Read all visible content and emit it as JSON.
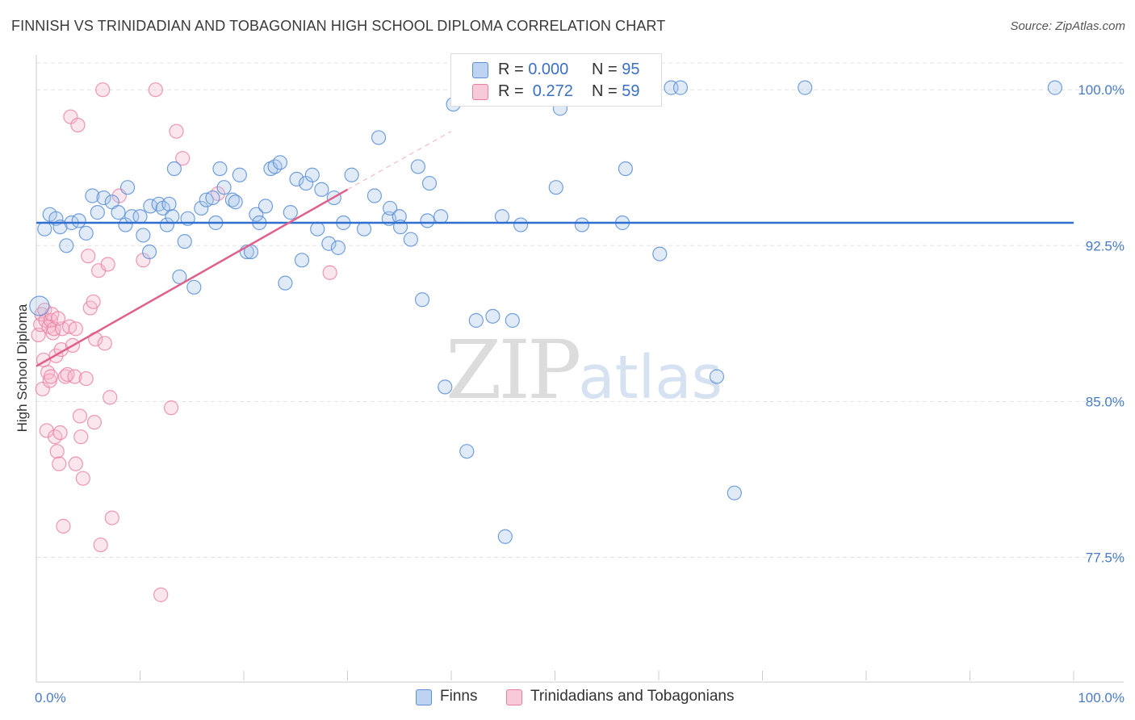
{
  "title": "FINNISH VS TRINIDADIAN AND TOBAGONIAN HIGH SCHOOL DIPLOMA CORRELATION CHART",
  "source": "Source: ZipAtlas.com",
  "watermark": {
    "zip": "ZIP",
    "atlas": "atlas"
  },
  "legend": {
    "finns": {
      "r_label": "R = ",
      "r_value": "0.000",
      "n_label": "N = ",
      "n_value": "95"
    },
    "trini": {
      "r_label": "R = ",
      "r_value": " 0.272",
      "n_label": "N = ",
      "n_value": "59"
    }
  },
  "bottom_legend": {
    "finns": "Finns",
    "trini": "Trinidadians and Tobagonians"
  },
  "colors": {
    "finns_fill": "#a9c6ec",
    "finns_stroke": "#5b8fd6",
    "finns_line": "#2f6fd0",
    "trini_fill": "#f5b8cc",
    "trini_stroke": "#e87ea2",
    "trini_line": "#e0608c",
    "grid": "#e3e3e3",
    "axis": "#cccccc",
    "tick_text": "#4a7bc8"
  },
  "chart_data": {
    "type": "scatter",
    "title": "FINNISH VS TRINIDADIAN AND TOBAGONIAN HIGH SCHOOL DIPLOMA CORRELATION CHART",
    "xlabel": "",
    "ylabel": "High School Diploma",
    "xlim": [
      0,
      100
    ],
    "ylim": [
      71.5,
      101.6
    ],
    "x_tick_labels": [
      {
        "value": 0,
        "label": "0.0%"
      },
      {
        "value": 100,
        "label": "100.0%"
      }
    ],
    "y_ticks": [
      {
        "value": 100.0,
        "label": "100.0%"
      },
      {
        "value": 92.5,
        "label": "92.5%"
      },
      {
        "value": 85.0,
        "label": "85.0%"
      },
      {
        "value": 77.5,
        "label": "77.5%"
      }
    ],
    "grid": true,
    "series": [
      {
        "name": "Finns",
        "R": 0.0,
        "N": 95,
        "trend": {
          "x0": 0,
          "y0": 93.6,
          "x1": 100,
          "y1": 93.6
        },
        "points": [
          [
            0.3,
            89.6
          ],
          [
            0.8,
            93.3
          ],
          [
            1.3,
            94.0
          ],
          [
            1.9,
            93.8
          ],
          [
            2.3,
            93.4
          ],
          [
            2.9,
            92.5
          ],
          [
            3.4,
            93.6
          ],
          [
            4.1,
            93.7
          ],
          [
            4.8,
            93.1
          ],
          [
            5.4,
            94.9
          ],
          [
            5.9,
            94.1
          ],
          [
            6.5,
            94.8
          ],
          [
            7.3,
            94.6
          ],
          [
            7.9,
            94.1
          ],
          [
            8.6,
            93.5
          ],
          [
            9.2,
            93.9
          ],
          [
            8.8,
            95.3
          ],
          [
            10.0,
            93.9
          ],
          [
            10.3,
            93.0
          ],
          [
            10.9,
            92.2
          ],
          [
            11.0,
            94.4
          ],
          [
            11.8,
            94.5
          ],
          [
            12.2,
            94.3
          ],
          [
            12.8,
            94.5
          ],
          [
            12.6,
            93.5
          ],
          [
            13.1,
            93.9
          ],
          [
            13.3,
            96.2
          ],
          [
            13.8,
            91.0
          ],
          [
            14.3,
            92.7
          ],
          [
            14.6,
            93.8
          ],
          [
            15.2,
            90.5
          ],
          [
            15.9,
            94.3
          ],
          [
            16.4,
            94.7
          ],
          [
            17.0,
            94.8
          ],
          [
            17.3,
            93.6
          ],
          [
            17.7,
            96.2
          ],
          [
            18.1,
            95.3
          ],
          [
            18.9,
            94.7
          ],
          [
            19.2,
            94.6
          ],
          [
            19.6,
            95.9
          ],
          [
            20.3,
            92.2
          ],
          [
            20.7,
            92.2
          ],
          [
            21.2,
            94.0
          ],
          [
            21.5,
            93.6
          ],
          [
            22.1,
            94.4
          ],
          [
            22.6,
            96.2
          ],
          [
            23.0,
            96.3
          ],
          [
            23.5,
            96.5
          ],
          [
            24.0,
            90.7
          ],
          [
            24.5,
            94.1
          ],
          [
            25.1,
            95.7
          ],
          [
            25.6,
            91.8
          ],
          [
            26.0,
            95.5
          ],
          [
            26.6,
            95.9
          ],
          [
            27.1,
            93.3
          ],
          [
            27.5,
            95.2
          ],
          [
            28.2,
            92.6
          ],
          [
            28.7,
            94.8
          ],
          [
            29.1,
            92.4
          ],
          [
            29.6,
            93.6
          ],
          [
            30.4,
            95.9
          ],
          [
            31.6,
            93.3
          ],
          [
            32.6,
            94.9
          ],
          [
            33.0,
            97.7
          ],
          [
            34.0,
            93.8
          ],
          [
            34.1,
            94.3
          ],
          [
            35.0,
            93.9
          ],
          [
            35.1,
            93.4
          ],
          [
            36.1,
            92.8
          ],
          [
            36.8,
            96.3
          ],
          [
            37.2,
            89.9
          ],
          [
            37.7,
            93.7
          ],
          [
            37.9,
            95.5
          ],
          [
            39.0,
            93.9
          ],
          [
            39.4,
            85.7
          ],
          [
            41.5,
            82.6
          ],
          [
            42.4,
            88.9
          ],
          [
            44.0,
            89.1
          ],
          [
            44.9,
            93.9
          ],
          [
            45.2,
            78.5
          ],
          [
            45.9,
            88.9
          ],
          [
            46.7,
            93.5
          ],
          [
            50.1,
            95.3
          ],
          [
            52.6,
            93.5
          ],
          [
            56.5,
            93.6
          ],
          [
            56.8,
            96.2
          ],
          [
            60.1,
            92.1
          ],
          [
            61.2,
            100.1
          ],
          [
            62.1,
            100.1
          ],
          [
            65.6,
            86.2
          ],
          [
            67.3,
            80.6
          ],
          [
            74.1,
            100.1
          ],
          [
            98.2,
            100.1
          ],
          [
            40.2,
            99.3
          ],
          [
            50.5,
            99.1
          ]
        ]
      },
      {
        "name": "Trinidadians and Tobagonians",
        "R": 0.272,
        "N": 59,
        "trend": {
          "x0": 0,
          "y0": 86.7,
          "x1": 30,
          "y1": 95.2
        },
        "trend_ext": {
          "x0": 30,
          "y0": 95.2,
          "x1": 40,
          "y1": 98.0
        },
        "points": [
          [
            0.2,
            88.2
          ],
          [
            0.4,
            88.7
          ],
          [
            0.5,
            89.2
          ],
          [
            0.6,
            85.6
          ],
          [
            0.8,
            89.4
          ],
          [
            0.9,
            88.9
          ],
          [
            1.0,
            83.6
          ],
          [
            1.1,
            86.4
          ],
          [
            1.2,
            88.6
          ],
          [
            1.3,
            86.0
          ],
          [
            1.4,
            88.9
          ],
          [
            1.5,
            89.2
          ],
          [
            1.6,
            88.3
          ],
          [
            1.7,
            88.5
          ],
          [
            1.8,
            83.3
          ],
          [
            1.9,
            87.2
          ],
          [
            2.0,
            82.6
          ],
          [
            2.2,
            82.0
          ],
          [
            2.3,
            83.5
          ],
          [
            2.4,
            87.5
          ],
          [
            2.5,
            88.5
          ],
          [
            2.6,
            79.0
          ],
          [
            2.8,
            86.2
          ],
          [
            3.0,
            86.3
          ],
          [
            3.2,
            88.6
          ],
          [
            3.3,
            98.7
          ],
          [
            3.5,
            87.7
          ],
          [
            3.7,
            86.2
          ],
          [
            3.8,
            82.0
          ],
          [
            4.0,
            98.3
          ],
          [
            4.2,
            84.3
          ],
          [
            4.3,
            83.3
          ],
          [
            4.5,
            81.3
          ],
          [
            4.8,
            86.1
          ],
          [
            5.0,
            92.0
          ],
          [
            5.2,
            89.5
          ],
          [
            5.5,
            89.8
          ],
          [
            5.7,
            88.0
          ],
          [
            6.0,
            91.3
          ],
          [
            6.2,
            78.1
          ],
          [
            6.4,
            100.0
          ],
          [
            6.6,
            87.8
          ],
          [
            6.9,
            91.6
          ],
          [
            7.1,
            85.2
          ],
          [
            7.3,
            79.4
          ],
          [
            8.0,
            94.9
          ],
          [
            10.3,
            91.8
          ],
          [
            11.5,
            100.0
          ],
          [
            12.0,
            75.7
          ],
          [
            13.0,
            84.7
          ],
          [
            13.5,
            98.0
          ],
          [
            14.1,
            96.7
          ],
          [
            17.5,
            95.0
          ],
          [
            28.3,
            91.2
          ],
          [
            2.1,
            89.0
          ],
          [
            1.4,
            86.2
          ],
          [
            3.8,
            88.5
          ],
          [
            0.7,
            87.0
          ],
          [
            5.6,
            84.0
          ]
        ]
      }
    ]
  }
}
